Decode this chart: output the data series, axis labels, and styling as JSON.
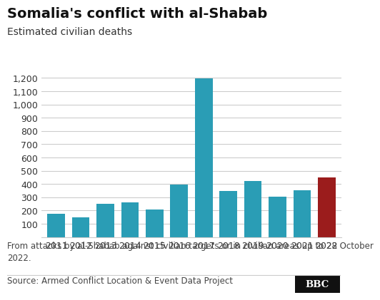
{
  "title": "Somalia's conflict with al-Shabab",
  "subtitle": "Estimated civilian deaths",
  "years": [
    "2011",
    "2012",
    "2013",
    "2014",
    "2015",
    "2016",
    "2017",
    "2018",
    "2019",
    "2020",
    "2021",
    "2022"
  ],
  "values": [
    175,
    148,
    248,
    260,
    210,
    395,
    1195,
    348,
    425,
    305,
    355,
    450
  ],
  "bar_colors": [
    "#2a9db5",
    "#2a9db5",
    "#2a9db5",
    "#2a9db5",
    "#2a9db5",
    "#2a9db5",
    "#2a9db5",
    "#2a9db5",
    "#2a9db5",
    "#2a9db5",
    "#2a9db5",
    "#9b1c1c"
  ],
  "ylim": [
    0,
    1300
  ],
  "yticks": [
    0,
    100,
    200,
    300,
    400,
    500,
    600,
    700,
    800,
    900,
    1000,
    1100,
    1200
  ],
  "ytick_labels": [
    "",
    "100",
    "200",
    "300",
    "400",
    "500",
    "600",
    "700",
    "800",
    "900",
    "1,000",
    "1,100",
    "1,200"
  ],
  "footnote": "From attacks by al-Shabab against civilian targets or in civilian areas up to 28 October\n2022.",
  "source": "Source: Armed Conflict Location & Event Data Project",
  "bbc_logo": "BBC",
  "background_color": "#ffffff",
  "grid_color": "#cccccc",
  "title_fontsize": 14,
  "subtitle_fontsize": 10,
  "tick_fontsize": 9,
  "footnote_fontsize": 8.5
}
